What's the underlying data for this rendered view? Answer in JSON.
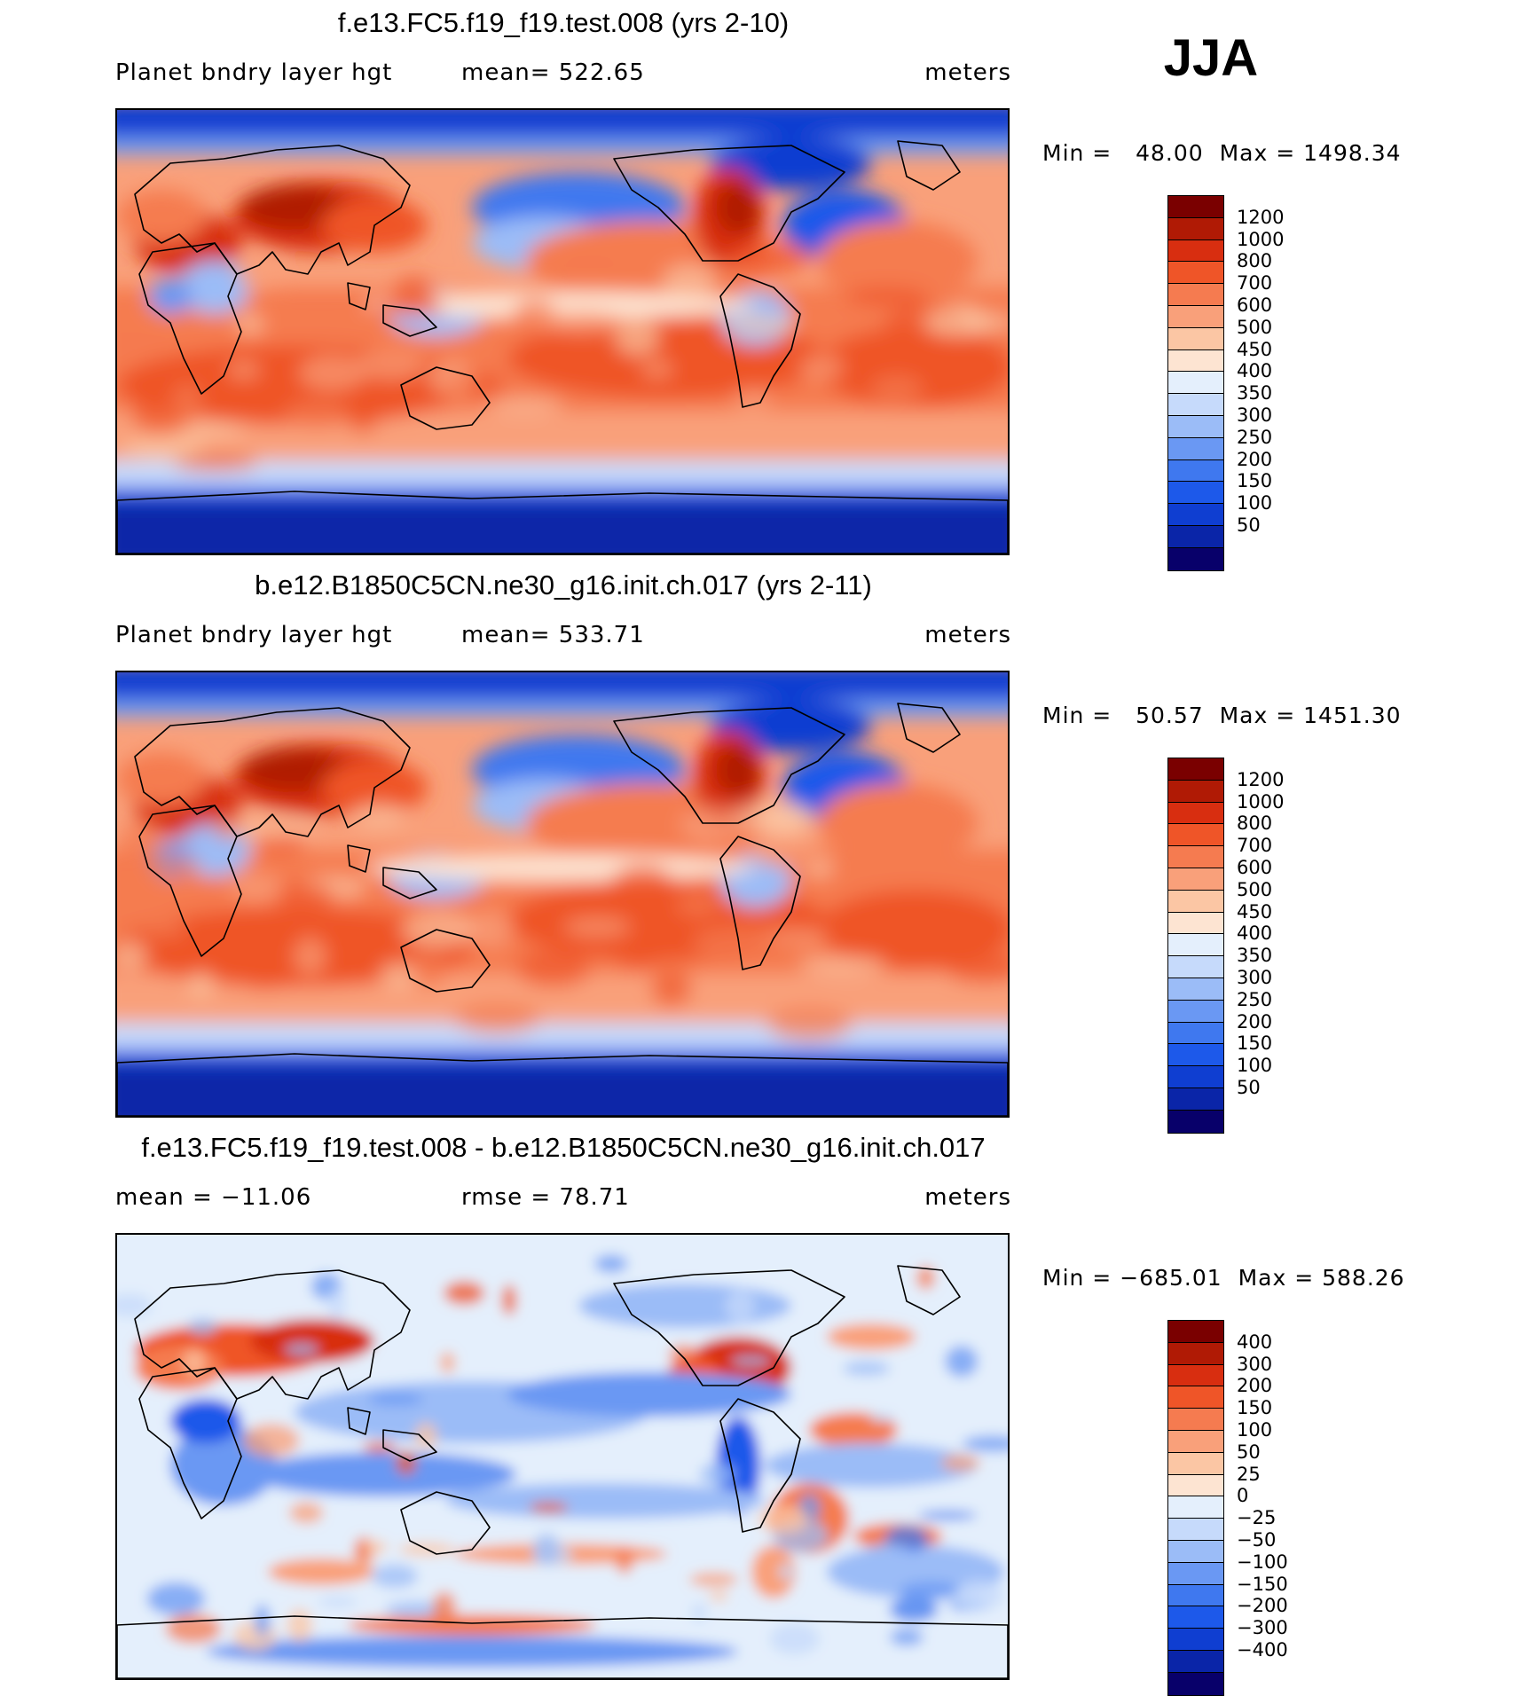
{
  "season": "JJA",
  "colorbar_palettes": {
    "absolute": [
      "#08006a",
      "#0a25a8",
      "#0f3ed1",
      "#1d59ea",
      "#3f78ef",
      "#6a98f3",
      "#9bbcf7",
      "#c6dafb",
      "#e4effc",
      "#fde4d2",
      "#fbc6a4",
      "#f9a07a",
      "#f57b50",
      "#ef5528",
      "#d82e10",
      "#b01a05",
      "#7a0000"
    ],
    "difference": [
      "#08006a",
      "#0a25a8",
      "#0f3ed1",
      "#1d59ea",
      "#3f78ef",
      "#6a98f3",
      "#9bbcf7",
      "#c6dafb",
      "#e4effc",
      "#fde4d2",
      "#fbc6a4",
      "#f9a07a",
      "#f57b50",
      "#ef5528",
      "#d82e10",
      "#b01a05",
      "#7a0000"
    ]
  },
  "panels": [
    {
      "title": "f.e13.FC5.f19_f19.test.008 (yrs 2-10)",
      "left_label": "Planet bndry layer hgt",
      "mid_label": "mean=  522.65",
      "units": "meters",
      "min_label": "Min =",
      "min_value": "48.00",
      "max_label": "Max =",
      "max_value": "1498.34",
      "colorbar_levels": [
        "1200",
        "1000",
        "800",
        "700",
        "600",
        "500",
        "450",
        "400",
        "350",
        "300",
        "250",
        "200",
        "150",
        "100",
        "50"
      ],
      "field": "abs1"
    },
    {
      "title": "b.e12.B1850C5CN.ne30_g16.init.ch.017 (yrs 2-11)",
      "left_label": "Planet bndry layer hgt",
      "mid_label": "mean=  533.71",
      "units": "meters",
      "min_label": "Min =",
      "min_value": "50.57",
      "max_label": "Max =",
      "max_value": "1451.30",
      "colorbar_levels": [
        "1200",
        "1000",
        "800",
        "700",
        "600",
        "500",
        "450",
        "400",
        "350",
        "300",
        "250",
        "200",
        "150",
        "100",
        "50"
      ],
      "field": "abs2"
    },
    {
      "title": "f.e13.FC5.f19_f19.test.008 - b.e12.B1850C5CN.ne30_g16.init.ch.017",
      "left_label": "mean = −11.06",
      "mid_label": "rmse =   78.71",
      "units": "meters",
      "min_label": "Min =",
      "min_value": "−685.01",
      "max_label": "Max =",
      "max_value": "588.26",
      "colorbar_levels": [
        "400",
        "300",
        "200",
        "150",
        "100",
        "50",
        "25",
        "0",
        "−25",
        "−50",
        "−100",
        "−150",
        "−200",
        "−300",
        "−400"
      ],
      "field": "diff"
    }
  ]
}
